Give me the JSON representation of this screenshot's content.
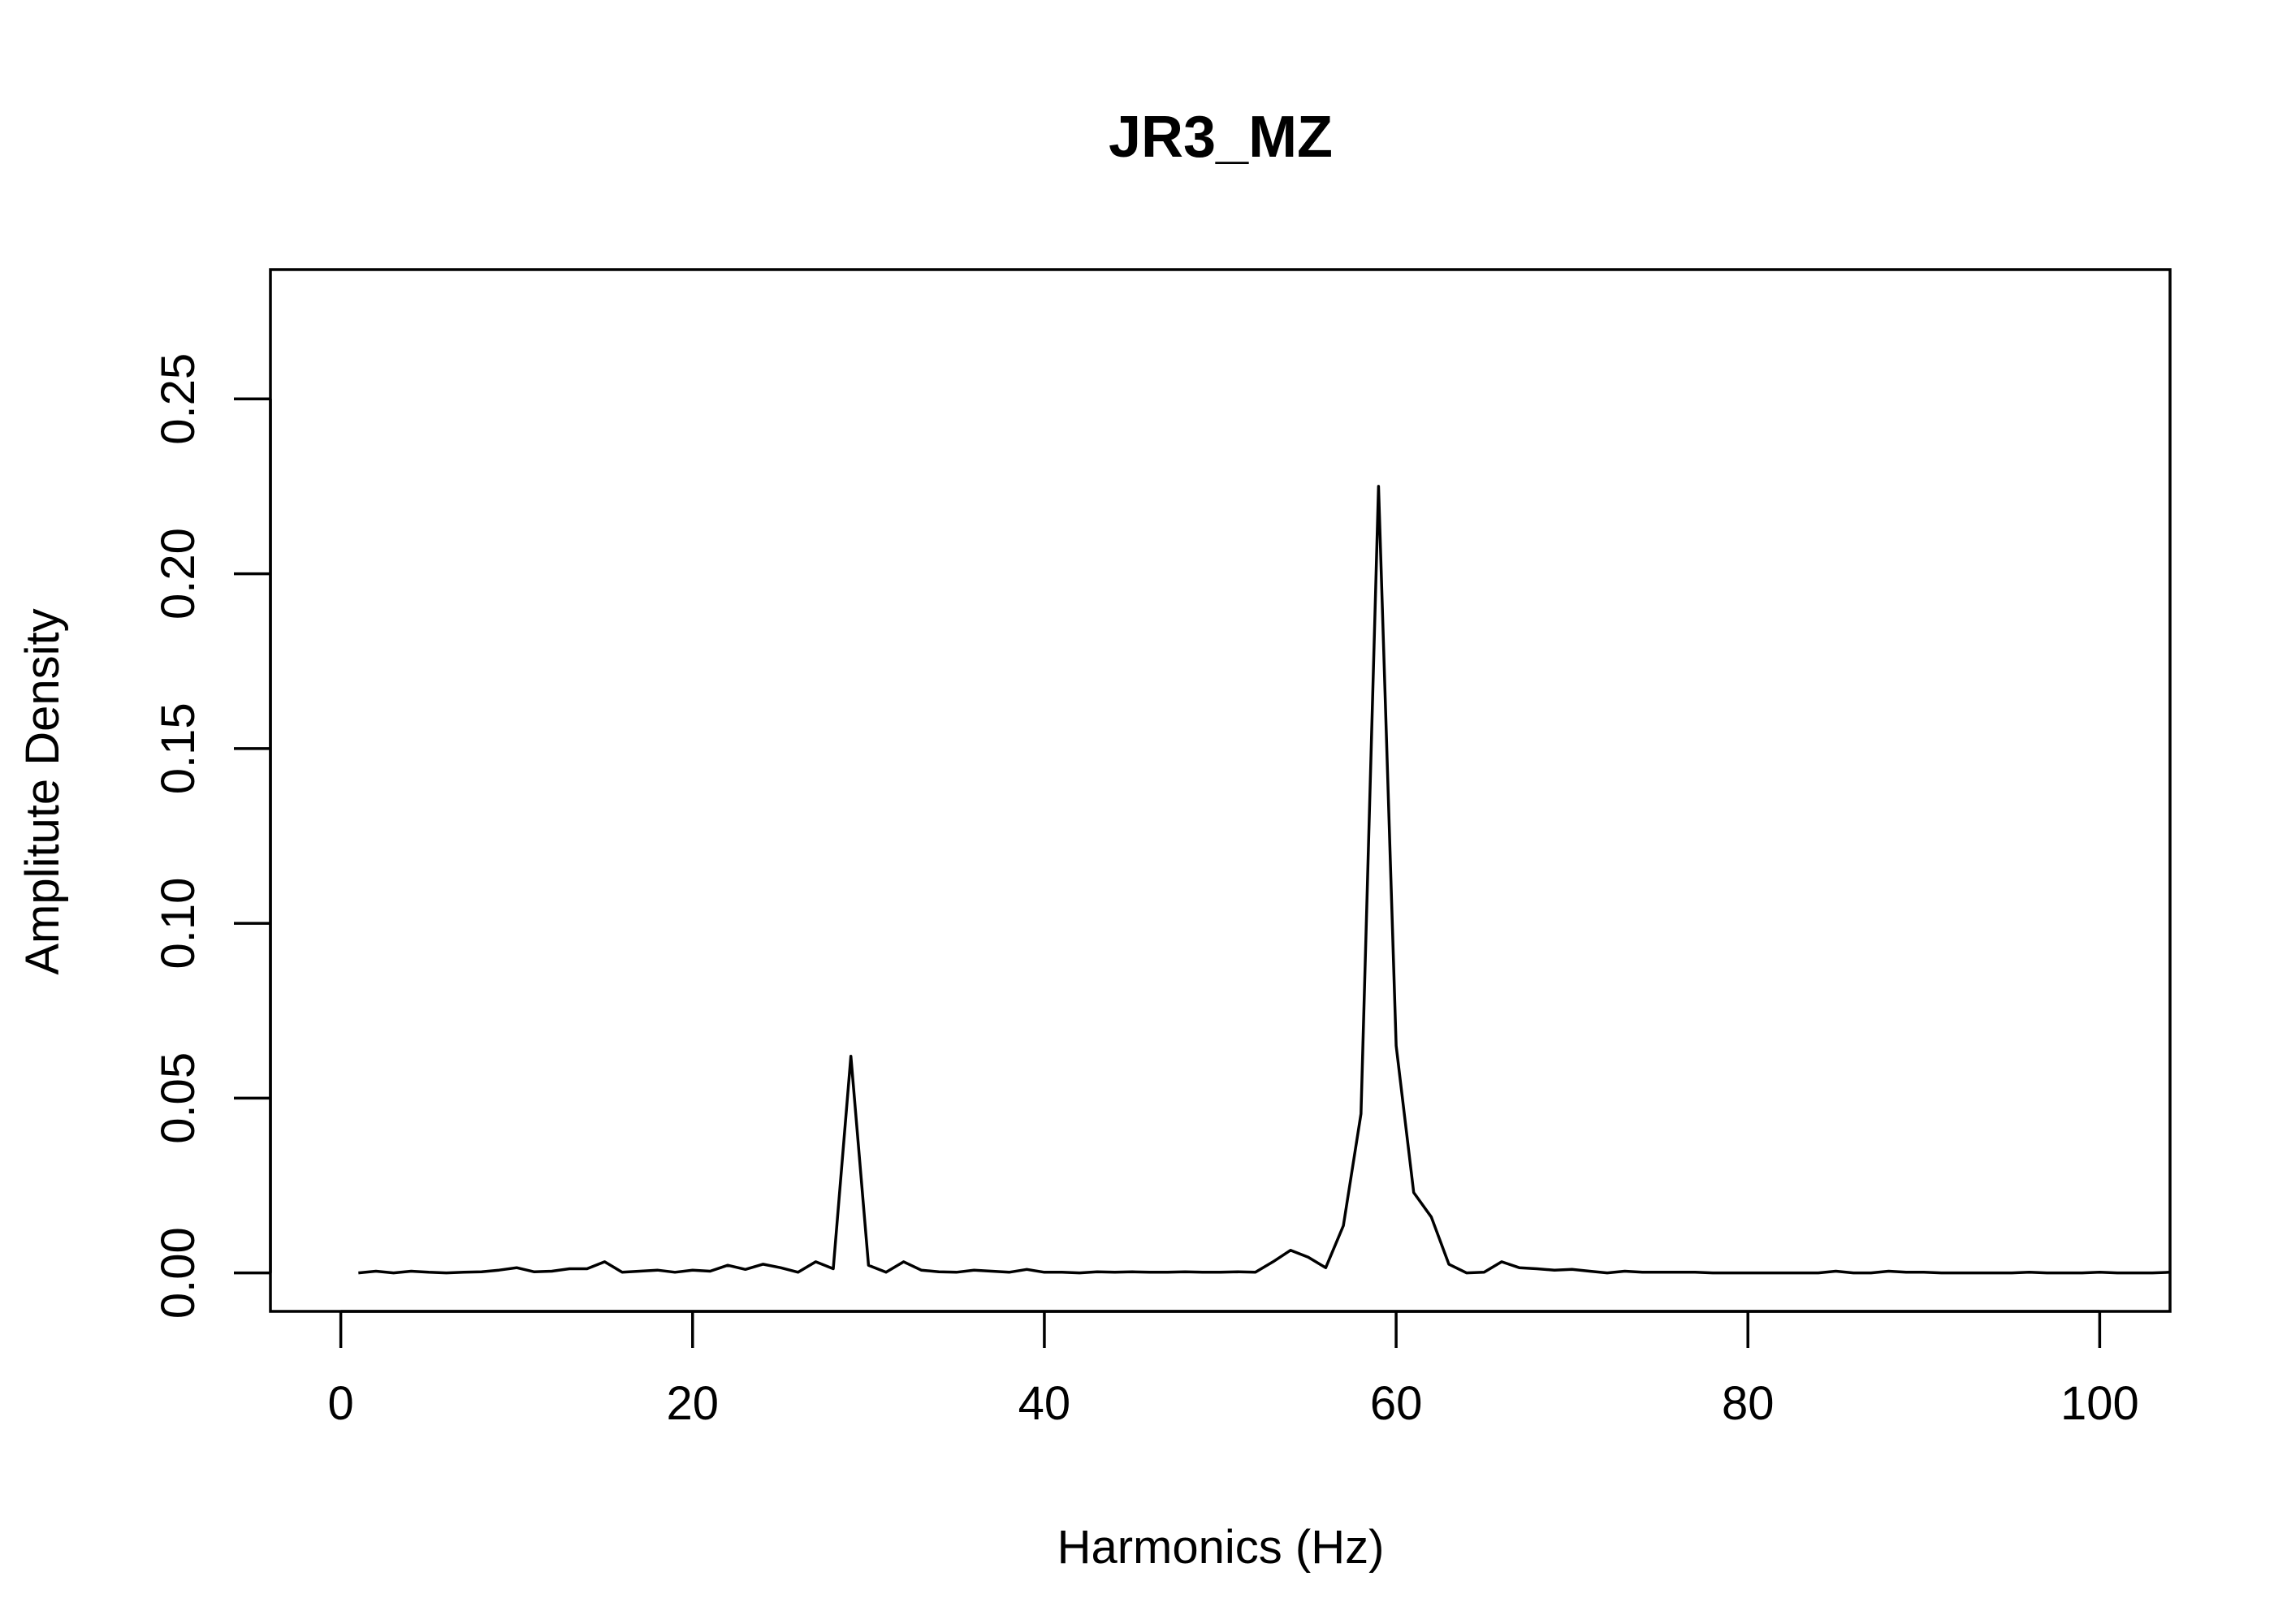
{
  "chart_data": {
    "type": "line",
    "title": "JR3_MZ",
    "xlabel": "Harmonics (Hz)",
    "ylabel": "Amplitute Density",
    "xlim": [
      -4,
      104
    ],
    "ylim": [
      -0.011,
      0.287
    ],
    "xticks": [
      "0",
      "20",
      "40",
      "60",
      "80",
      "100"
    ],
    "yticks": [
      "0.00",
      "0.05",
      "0.10",
      "0.15",
      "0.20",
      "0.25"
    ],
    "grid": false,
    "legend": "none",
    "series": [
      {
        "x": [
          1,
          2,
          3,
          4,
          5,
          6,
          7,
          8,
          9,
          10,
          11,
          12,
          13,
          14,
          15,
          16,
          17,
          18,
          19,
          20,
          21,
          22,
          23,
          24,
          25,
          26,
          27,
          28,
          29,
          30,
          31,
          32,
          33,
          34,
          35,
          36,
          37,
          38,
          39,
          40,
          41,
          42,
          43,
          44,
          45,
          46,
          47,
          48,
          49,
          50,
          51,
          52,
          53,
          54,
          55,
          56,
          57,
          58,
          59,
          60,
          61,
          62,
          63,
          64,
          65,
          66,
          67,
          68,
          69,
          70,
          71,
          72,
          73,
          74,
          75,
          76,
          77,
          78,
          79,
          80,
          81,
          82,
          83,
          84,
          85,
          86,
          87,
          88,
          89,
          90,
          91,
          92,
          93,
          94,
          95,
          96,
          97,
          98,
          99,
          100,
          101,
          102,
          103,
          104
        ],
        "y": [
          0.0,
          0.0005,
          0.0,
          0.0005,
          0.0002,
          0.0,
          0.0002,
          0.0003,
          0.0008,
          0.0015,
          0.0003,
          0.0005,
          0.0012,
          0.0012,
          0.0032,
          0.0002,
          0.0005,
          0.0008,
          0.0002,
          0.0008,
          0.0005,
          0.0022,
          0.001,
          0.0025,
          0.0015,
          0.0002,
          0.0032,
          0.0012,
          0.062,
          0.0022,
          0.0002,
          0.0032,
          0.0008,
          0.0003,
          0.0002,
          0.0008,
          0.0005,
          0.0002,
          0.001,
          0.0002,
          0.0002,
          0.0,
          0.0003,
          0.0002,
          0.0003,
          0.0002,
          0.0002,
          0.0003,
          0.0002,
          0.0002,
          0.0003,
          0.0002,
          0.0032,
          0.0065,
          0.0045,
          0.0015,
          0.0135,
          0.0455,
          0.225,
          0.065,
          0.023,
          0.016,
          0.0025,
          0.0,
          0.0002,
          0.0032,
          0.0015,
          0.0012,
          0.0008,
          0.001,
          0.0005,
          0.0,
          0.0005,
          0.0002,
          0.0002,
          0.0002,
          0.0002,
          0.0,
          0.0,
          0.0,
          0.0,
          0.0,
          0.0,
          0.0,
          0.0005,
          0.0,
          0.0,
          0.0005,
          0.0002,
          0.0002,
          0.0,
          0.0,
          0.0,
          0.0,
          0.0,
          0.0002,
          0.0,
          0.0,
          0.0,
          0.0002,
          0.0,
          0.0,
          0.0,
          0.0002
        ]
      }
    ]
  }
}
